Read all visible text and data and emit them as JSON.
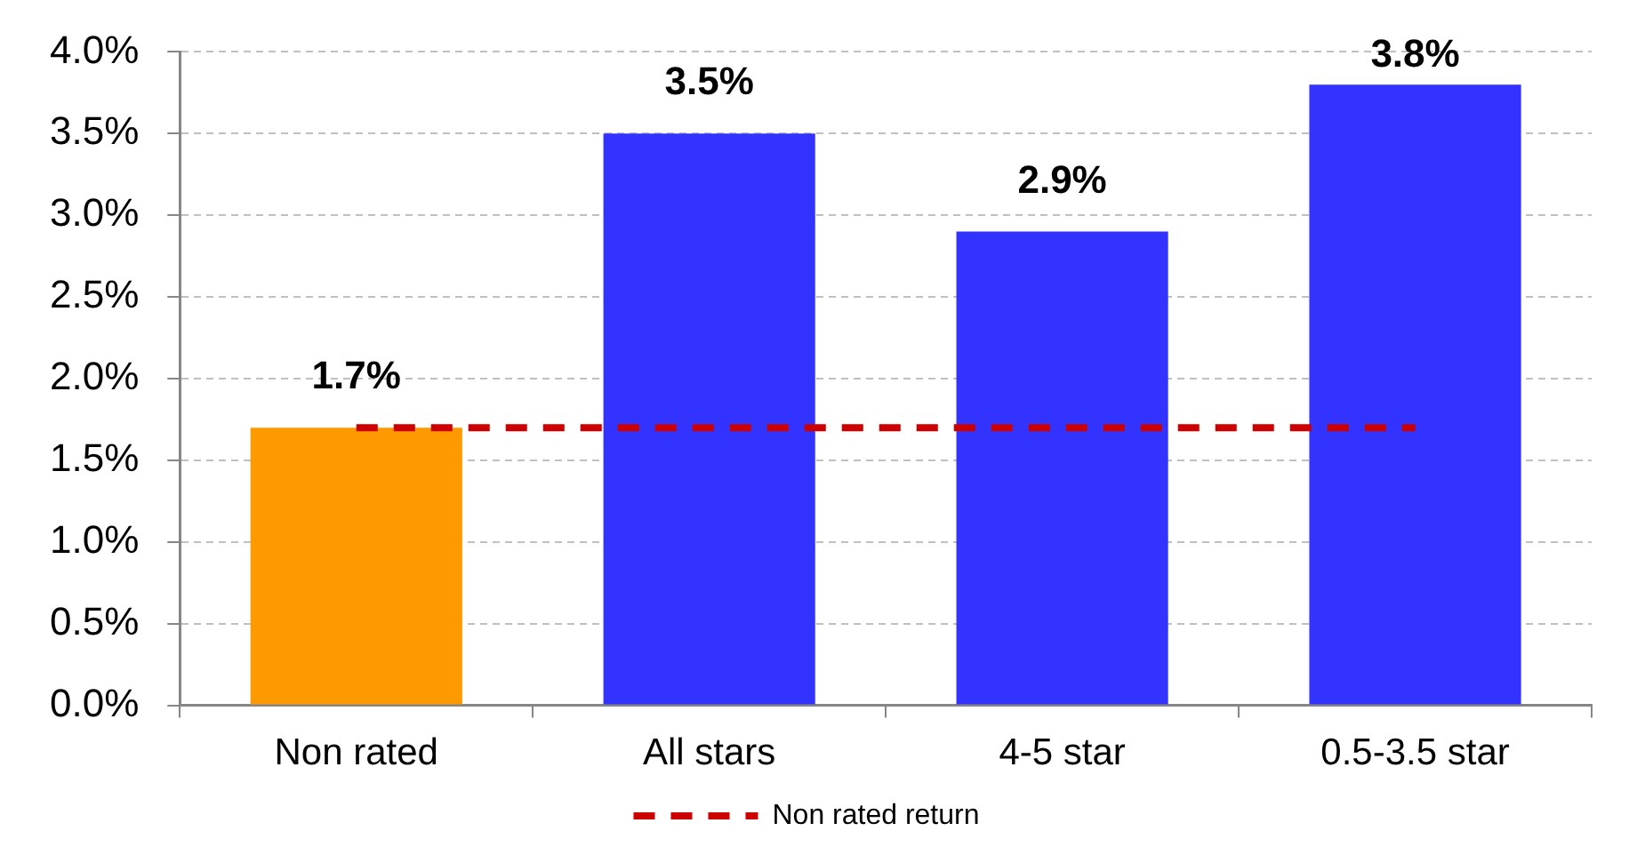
{
  "chart_data": {
    "type": "bar",
    "categories": [
      "Non rated",
      "All stars",
      "4-5 star",
      "0.5-3.5 star"
    ],
    "series": [
      {
        "colors": [
          "#ff9900",
          "#3333ff",
          "#3333ff",
          "#3333ff"
        ],
        "values": [
          1.7,
          3.5,
          2.9,
          3.8
        ],
        "value_labels": [
          "1.7%",
          "3.5%",
          "2.9%",
          "3.8%"
        ]
      },
      {
        "type": "line",
        "name": "Non rated return",
        "color": "#cc0000",
        "values": [
          1.7,
          1.7,
          1.7,
          1.7
        ],
        "line_style": "dashed"
      }
    ],
    "ylim": [
      0,
      4
    ],
    "yticks": [
      {
        "value": 0,
        "label": "0.0%"
      },
      {
        "value": 0.5,
        "label": "0.5%"
      },
      {
        "value": 1,
        "label": "1.0%"
      },
      {
        "value": 1.5,
        "label": "1.5%"
      },
      {
        "value": 2,
        "label": "2.0%"
      },
      {
        "value": 2.5,
        "label": "2.5%"
      },
      {
        "value": 3,
        "label": "3.0%"
      },
      {
        "value": 3.5,
        "label": "3.5%"
      },
      {
        "value": 4,
        "label": "4.0%"
      }
    ],
    "grid": "y",
    "legend": "bottom"
  }
}
